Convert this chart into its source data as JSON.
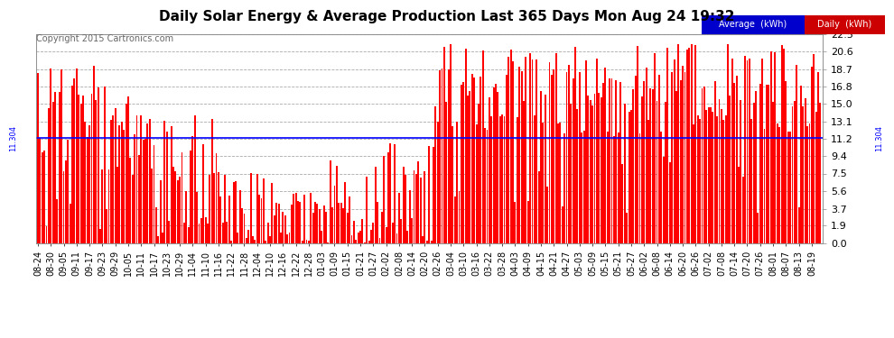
{
  "title": "Daily Solar Energy & Average Production Last 365 Days Mon Aug 24 19:32",
  "copyright": "Copyright 2015 Cartronics.com",
  "average": 11.304,
  "avg_color": "#0000ff",
  "bar_color": "#ff0000",
  "bg_color": "#ffffff",
  "yticks": [
    0.0,
    1.9,
    3.7,
    5.6,
    7.5,
    9.4,
    11.2,
    13.1,
    15.0,
    16.8,
    18.7,
    20.6,
    22.5
  ],
  "ymax": 22.5,
  "xtick_labels": [
    "08-24",
    "08-30",
    "09-05",
    "09-11",
    "09-17",
    "09-23",
    "09-29",
    "10-05",
    "10-11",
    "10-17",
    "10-23",
    "10-29",
    "11-04",
    "11-10",
    "11-16",
    "11-22",
    "11-28",
    "12-04",
    "12-10",
    "12-16",
    "12-22",
    "12-28",
    "01-03",
    "01-09",
    "01-15",
    "01-21",
    "01-27",
    "02-02",
    "02-08",
    "02-14",
    "02-20",
    "02-26",
    "03-04",
    "03-10",
    "03-16",
    "03-22",
    "03-28",
    "04-03",
    "04-09",
    "04-15",
    "04-21",
    "04-27",
    "05-03",
    "05-09",
    "05-15",
    "05-21",
    "05-27",
    "06-02",
    "06-08",
    "06-14",
    "06-20",
    "06-26",
    "07-02",
    "07-08",
    "07-14",
    "07-20",
    "07-26",
    "08-01",
    "08-07",
    "08-13",
    "08-19"
  ]
}
